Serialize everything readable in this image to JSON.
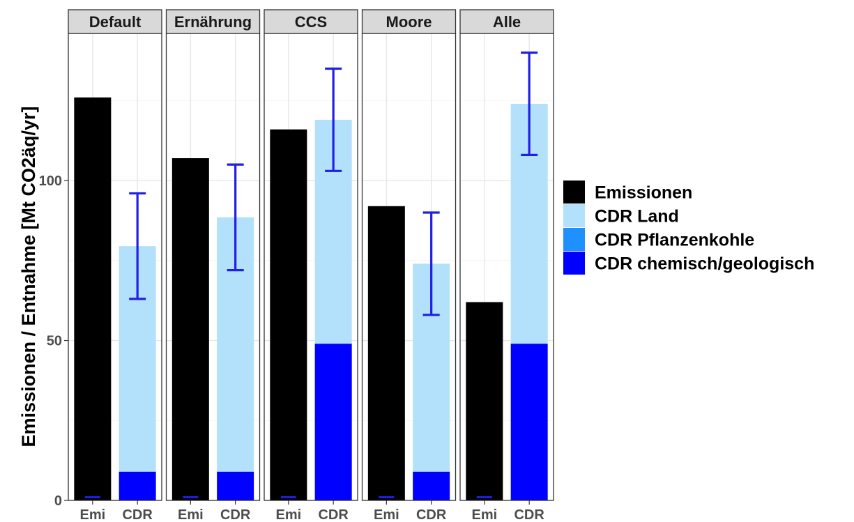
{
  "chart_data": {
    "type": "bar",
    "stacked": true,
    "facets": [
      "Default",
      "Ernährung",
      "CCS",
      "Moore",
      "Alle"
    ],
    "categories": [
      "Emi",
      "CDR"
    ],
    "ylabel": "Emissionen / Entnahme [Mt CO2äq/yr]",
    "ylim": [
      0,
      146
    ],
    "yticks": [
      0,
      50,
      100
    ],
    "grid": true,
    "legend_position": "right",
    "legend": [
      {
        "name": "Emissionen",
        "color": "#000000"
      },
      {
        "name": "CDR Land",
        "color": "#b3e0fa"
      },
      {
        "name": "CDR Pflanzenkohle",
        "color": "#1e90ff"
      },
      {
        "name": "CDR chemisch/geologisch",
        "color": "#0000ff"
      }
    ],
    "panels": [
      {
        "facet": "Default",
        "emi": 126,
        "cdr_land": 70.5,
        "cdr_pflanzenkohle": 0,
        "cdr_chem": 9,
        "err_low": 63,
        "err_high": 96
      },
      {
        "facet": "Ernährung",
        "emi": 107,
        "cdr_land": 79.5,
        "cdr_pflanzenkohle": 0,
        "cdr_chem": 9,
        "err_low": 72,
        "err_high": 105
      },
      {
        "facet": "CCS",
        "emi": 116,
        "cdr_land": 70,
        "cdr_pflanzenkohle": 0,
        "cdr_chem": 49,
        "err_low": 103,
        "err_high": 135
      },
      {
        "facet": "Moore",
        "emi": 92,
        "cdr_land": 65,
        "cdr_pflanzenkohle": 0,
        "cdr_chem": 9,
        "err_low": 58,
        "err_high": 90
      },
      {
        "facet": "Alle",
        "emi": 62,
        "cdr_land": 75,
        "cdr_pflanzenkohle": 0,
        "cdr_chem": 49,
        "err_low": 108,
        "err_high": 140
      }
    ],
    "error_color": "#1f1fe6"
  }
}
